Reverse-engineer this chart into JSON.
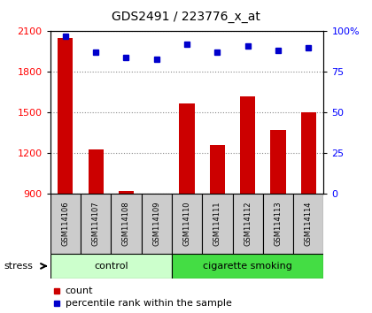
{
  "title": "GDS2491 / 223776_x_at",
  "samples": [
    "GSM114106",
    "GSM114107",
    "GSM114108",
    "GSM114109",
    "GSM114110",
    "GSM114111",
    "GSM114112",
    "GSM114113",
    "GSM114114"
  ],
  "counts": [
    2050,
    1230,
    920,
    870,
    1570,
    1260,
    1620,
    1370,
    1500
  ],
  "percentiles": [
    97,
    87,
    84,
    83,
    92,
    87,
    91,
    88,
    90
  ],
  "ylim_left": [
    900,
    2100
  ],
  "ylim_right": [
    0,
    100
  ],
  "yticks_left": [
    900,
    1200,
    1500,
    1800,
    2100
  ],
  "yticks_right": [
    0,
    25,
    50,
    75,
    100
  ],
  "groups": [
    {
      "label": "control",
      "start": 0,
      "end": 4,
      "color": "#ccffcc"
    },
    {
      "label": "cigarette smoking",
      "start": 4,
      "end": 9,
      "color": "#44dd44"
    }
  ],
  "bar_color": "#cc0000",
  "dot_color": "#0000cc",
  "stress_label": "stress",
  "legend_count_label": "count",
  "legend_pct_label": "percentile rank within the sample",
  "grid_color": "#888888",
  "bar_width": 0.5,
  "label_box_color": "#cccccc",
  "right_pct_label": "100%"
}
